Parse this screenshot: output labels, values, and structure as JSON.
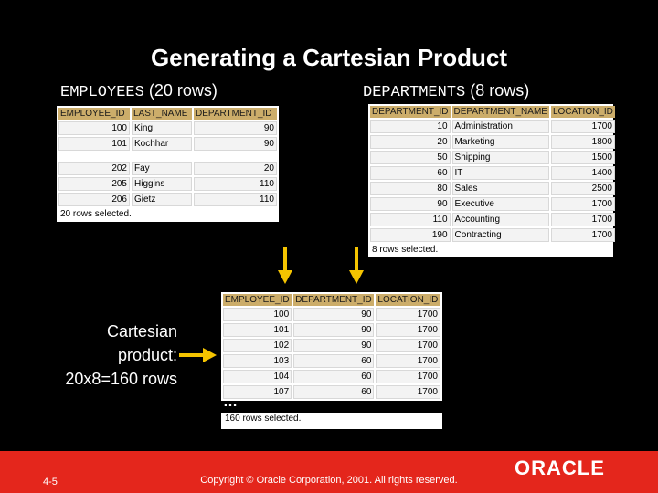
{
  "slide": {
    "title": "Generating a Cartesian Product",
    "employees_label_mono": "EMPLOYEES",
    "employees_label_rest": "(20 rows)",
    "departments_label_mono": "DEPARTMENTS",
    "departments_label_rest": "(8 rows)",
    "ellipsis": "…",
    "cartesian_line1": "Cartesian",
    "cartesian_line2": "product:",
    "cartesian_line3": "20x8=160 rows",
    "slide_number": "4-5",
    "copyright": "Copyright © Oracle Corporation, 2001. All rights reserved.",
    "logo": "ORACLE"
  },
  "employees": {
    "headers": [
      "EMPLOYEE_ID",
      "LAST_NAME",
      "DEPARTMENT_ID"
    ],
    "rows_top": [
      [
        "100",
        "King",
        "90"
      ],
      [
        "101",
        "Kochhar",
        "90"
      ]
    ],
    "rows_bottom": [
      [
        "202",
        "Fay",
        "20"
      ],
      [
        "205",
        "Higgins",
        "110"
      ],
      [
        "206",
        "Gietz",
        "110"
      ]
    ],
    "footer": "20 rows selected."
  },
  "departments": {
    "headers": [
      "DEPARTMENT_ID",
      "DEPARTMENT_NAME",
      "LOCATION_ID"
    ],
    "rows": [
      [
        "10",
        "Administration",
        "1700"
      ],
      [
        "20",
        "Marketing",
        "1800"
      ],
      [
        "50",
        "Shipping",
        "1500"
      ],
      [
        "60",
        "IT",
        "1400"
      ],
      [
        "80",
        "Sales",
        "2500"
      ],
      [
        "90",
        "Executive",
        "1700"
      ],
      [
        "110",
        "Accounting",
        "1700"
      ],
      [
        "190",
        "Contracting",
        "1700"
      ]
    ],
    "footer": "8 rows selected."
  },
  "cartesian": {
    "headers": [
      "EMPLOYEE_ID",
      "DEPARTMENT_ID",
      "LOCATION_ID"
    ],
    "rows": [
      [
        "100",
        "90",
        "1700"
      ],
      [
        "101",
        "90",
        "1700"
      ],
      [
        "102",
        "90",
        "1700"
      ],
      [
        "103",
        "60",
        "1700"
      ],
      [
        "104",
        "60",
        "1700"
      ],
      [
        "107",
        "60",
        "1700"
      ]
    ],
    "footer": "160 rows selected."
  },
  "colors": {
    "header_bg": "#ccad6a",
    "arrow": "#f5c400",
    "bar": "#e4261c"
  }
}
